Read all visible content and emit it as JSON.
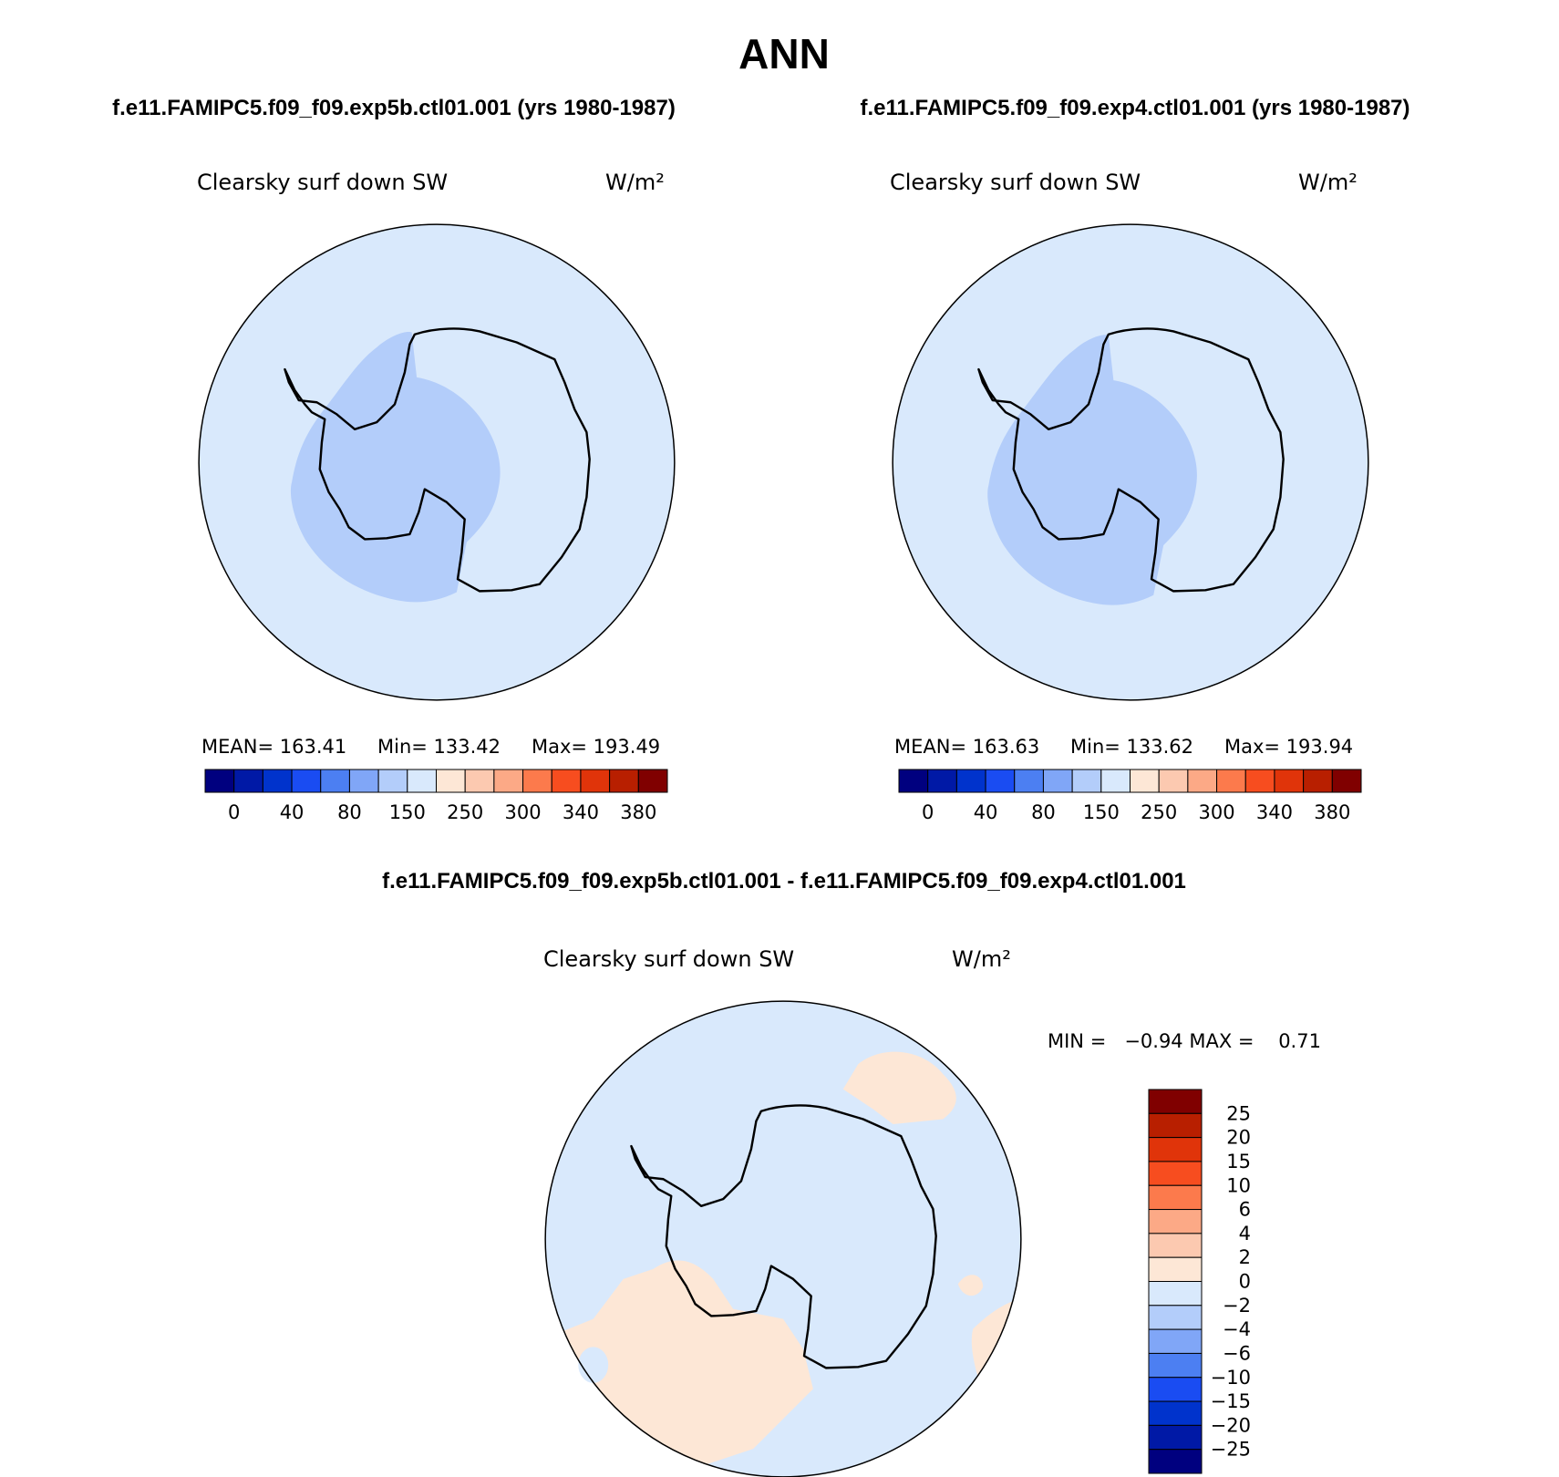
{
  "header": {
    "title": "ANN"
  },
  "panels": [
    {
      "subtitle": "f.e11.FAMIPC5.f09_f09.exp5b.ctl01.001 (yrs 1980-1987)",
      "variable": "Clearsky surf down SW",
      "units": "W/m²",
      "mean": "MEAN= 163.41",
      "min": "Min= 133.42",
      "max": "Max= 193.49"
    },
    {
      "subtitle": "f.e11.FAMIPC5.f09_f09.exp4.ctl01.001 (yrs 1980-1987)",
      "variable": "Clearsky surf down SW",
      "units": "W/m²",
      "mean": "MEAN= 163.63",
      "min": "Min= 133.62",
      "max": "Max= 193.94"
    }
  ],
  "colorbar": {
    "colors": [
      "#00007f",
      "#0019a6",
      "#0033cc",
      "#1a4cf2",
      "#4c7ff2",
      "#80a6f7",
      "#b3cdfa",
      "#d9e9fc",
      "#fde7d6",
      "#fcc9b0",
      "#fca986",
      "#fc7a4c",
      "#f74d1f",
      "#e0340a",
      "#b81f00",
      "#800000"
    ],
    "labels": [
      "0",
      "40",
      "80",
      "150",
      "250",
      "300",
      "340",
      "380"
    ]
  },
  "difference": {
    "subtitle": "f.e11.FAMIPC5.f09_f09.exp5b.ctl01.001 - f.e11.FAMIPC5.f09_f09.exp4.ctl01.001",
    "variable": "Clearsky surf down SW",
    "units": "W/m²",
    "minmax": "MIN =   −0.94 MAX =    0.71",
    "colorbar": {
      "colors": [
        "#800000",
        "#b81f00",
        "#e0340a",
        "#f74d1f",
        "#fc7a4c",
        "#fca986",
        "#fcc9b0",
        "#fde7d6",
        "#d9e9fc",
        "#b3cdfa",
        "#80a6f7",
        "#4c7ff2",
        "#1a4cf2",
        "#0033cc",
        "#0019a6",
        "#00007f"
      ],
      "labels": [
        "25",
        "20",
        "15",
        "10",
        "6",
        "4",
        "2",
        "0",
        "−2",
        "−4",
        "−6",
        "−10",
        "−15",
        "−20",
        "−25"
      ]
    }
  }
}
